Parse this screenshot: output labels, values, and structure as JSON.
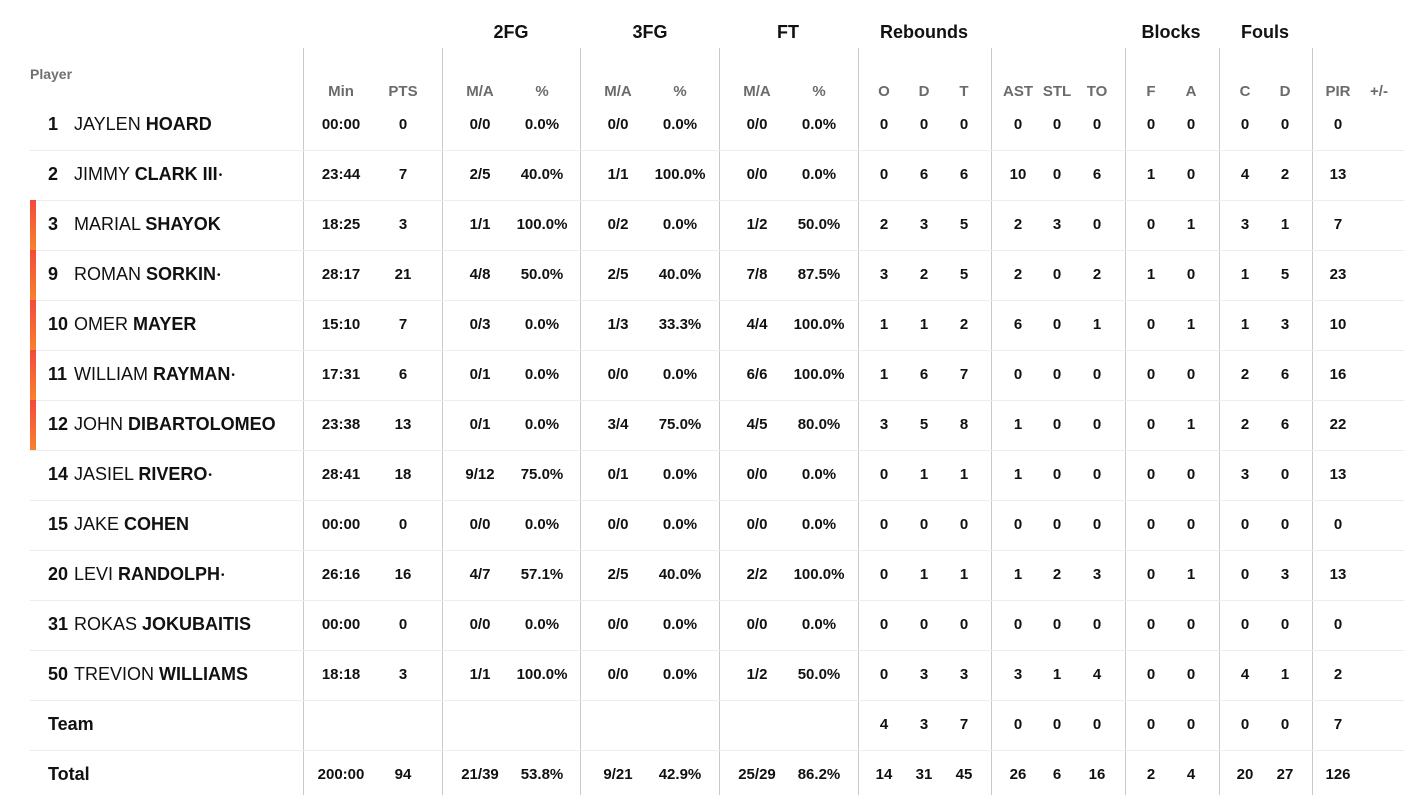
{
  "header": {
    "player_label": "Player",
    "groups": [
      "2FG",
      "3FG",
      "FT",
      "Rebounds",
      "Blocks",
      "Fouls"
    ],
    "columns": [
      "Min",
      "PTS",
      "M/A",
      "%",
      "M/A",
      "%",
      "M/A",
      "%",
      "O",
      "D",
      "T",
      "AST",
      "STL",
      "TO",
      "F",
      "A",
      "C",
      "D",
      "PIR",
      "+/-"
    ]
  },
  "accent_colors": [
    "#f4493e",
    "#f7822a"
  ],
  "players": [
    {
      "number": "1",
      "first": "JAYLEN",
      "last": "HOARD",
      "starter": false,
      "accent": false,
      "stats": [
        "00:00",
        "0",
        "0/0",
        "0.0%",
        "0/0",
        "0.0%",
        "0/0",
        "0.0%",
        "0",
        "0",
        "0",
        "0",
        "0",
        "0",
        "0",
        "0",
        "0",
        "0",
        "0",
        ""
      ]
    },
    {
      "number": "2",
      "first": "JIMMY",
      "last": "CLARK III",
      "starter": true,
      "accent": false,
      "stats": [
        "23:44",
        "7",
        "2/5",
        "40.0%",
        "1/1",
        "100.0%",
        "0/0",
        "0.0%",
        "0",
        "6",
        "6",
        "10",
        "0",
        "6",
        "1",
        "0",
        "4",
        "2",
        "13",
        ""
      ]
    },
    {
      "number": "3",
      "first": "MARIAL",
      "last": "SHAYOK",
      "starter": false,
      "accent": true,
      "stats": [
        "18:25",
        "3",
        "1/1",
        "100.0%",
        "0/2",
        "0.0%",
        "1/2",
        "50.0%",
        "2",
        "3",
        "5",
        "2",
        "3",
        "0",
        "0",
        "1",
        "3",
        "1",
        "7",
        ""
      ]
    },
    {
      "number": "9",
      "first": "ROMAN",
      "last": "SORKIN",
      "starter": true,
      "accent": true,
      "stats": [
        "28:17",
        "21",
        "4/8",
        "50.0%",
        "2/5",
        "40.0%",
        "7/8",
        "87.5%",
        "3",
        "2",
        "5",
        "2",
        "0",
        "2",
        "1",
        "0",
        "1",
        "5",
        "23",
        ""
      ]
    },
    {
      "number": "10",
      "first": "OMER",
      "last": "MAYER",
      "starter": false,
      "accent": true,
      "stats": [
        "15:10",
        "7",
        "0/3",
        "0.0%",
        "1/3",
        "33.3%",
        "4/4",
        "100.0%",
        "1",
        "1",
        "2",
        "6",
        "0",
        "1",
        "0",
        "1",
        "1",
        "3",
        "10",
        ""
      ]
    },
    {
      "number": "11",
      "first": "WILLIAM",
      "last": "RAYMAN",
      "starter": true,
      "accent": true,
      "stats": [
        "17:31",
        "6",
        "0/1",
        "0.0%",
        "0/0",
        "0.0%",
        "6/6",
        "100.0%",
        "1",
        "6",
        "7",
        "0",
        "0",
        "0",
        "0",
        "0",
        "2",
        "6",
        "16",
        ""
      ]
    },
    {
      "number": "12",
      "first": "JOHN",
      "last": "DIBARTOLOMEO",
      "starter": false,
      "accent": true,
      "stats": [
        "23:38",
        "13",
        "0/1",
        "0.0%",
        "3/4",
        "75.0%",
        "4/5",
        "80.0%",
        "3",
        "5",
        "8",
        "1",
        "0",
        "0",
        "0",
        "1",
        "2",
        "6",
        "22",
        ""
      ]
    },
    {
      "number": "14",
      "first": "JASIEL",
      "last": "RIVERO",
      "starter": true,
      "accent": false,
      "stats": [
        "28:41",
        "18",
        "9/12",
        "75.0%",
        "0/1",
        "0.0%",
        "0/0",
        "0.0%",
        "0",
        "1",
        "1",
        "1",
        "0",
        "0",
        "0",
        "0",
        "3",
        "0",
        "13",
        ""
      ]
    },
    {
      "number": "15",
      "first": "JAKE",
      "last": "COHEN",
      "starter": false,
      "accent": false,
      "stats": [
        "00:00",
        "0",
        "0/0",
        "0.0%",
        "0/0",
        "0.0%",
        "0/0",
        "0.0%",
        "0",
        "0",
        "0",
        "0",
        "0",
        "0",
        "0",
        "0",
        "0",
        "0",
        "0",
        ""
      ]
    },
    {
      "number": "20",
      "first": "LEVI",
      "last": "RANDOLPH",
      "starter": true,
      "accent": false,
      "stats": [
        "26:16",
        "16",
        "4/7",
        "57.1%",
        "2/5",
        "40.0%",
        "2/2",
        "100.0%",
        "0",
        "1",
        "1",
        "1",
        "2",
        "3",
        "0",
        "1",
        "0",
        "3",
        "13",
        ""
      ]
    },
    {
      "number": "31",
      "first": "ROKAS",
      "last": "JOKUBAITIS",
      "starter": false,
      "accent": false,
      "stats": [
        "00:00",
        "0",
        "0/0",
        "0.0%",
        "0/0",
        "0.0%",
        "0/0",
        "0.0%",
        "0",
        "0",
        "0",
        "0",
        "0",
        "0",
        "0",
        "0",
        "0",
        "0",
        "0",
        ""
      ]
    },
    {
      "number": "50",
      "first": "TREVION",
      "last": "WILLIAMS",
      "starter": false,
      "accent": false,
      "stats": [
        "18:18",
        "3",
        "1/1",
        "100.0%",
        "0/0",
        "0.0%",
        "1/2",
        "50.0%",
        "0",
        "3",
        "3",
        "3",
        "1",
        "4",
        "0",
        "0",
        "4",
        "1",
        "2",
        ""
      ]
    }
  ],
  "team": {
    "label": "Team",
    "stats": [
      "",
      "",
      "",
      "",
      "",
      "",
      "",
      "",
      "4",
      "3",
      "7",
      "0",
      "0",
      "0",
      "0",
      "0",
      "0",
      "0",
      "7",
      ""
    ]
  },
  "total": {
    "label": "Total",
    "stats": [
      "200:00",
      "94",
      "21/39",
      "53.8%",
      "9/21",
      "42.9%",
      "25/29",
      "86.2%",
      "14",
      "31",
      "45",
      "26",
      "6",
      "16",
      "2",
      "4",
      "20",
      "27",
      "126",
      ""
    ]
  }
}
